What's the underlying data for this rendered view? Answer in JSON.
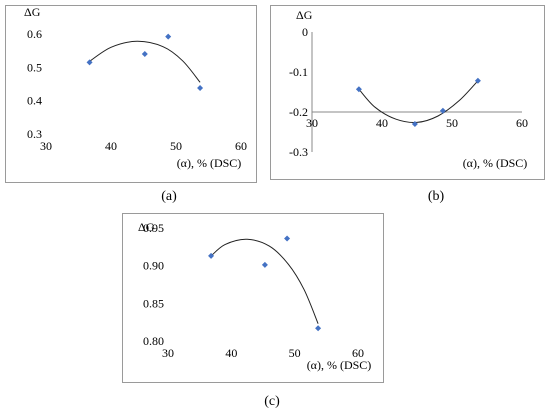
{
  "chart_data": [
    {
      "type": "scatter",
      "ylabel": "ΔG",
      "xlabel": "(α), % (DSC)",
      "xlim": [
        30,
        60
      ],
      "ylim": [
        0.3,
        0.6
      ],
      "xticks": [
        "30",
        "40",
        "50",
        "60"
      ],
      "yticks": [
        "0.3",
        "0.4",
        "0.5",
        "0.6"
      ],
      "points": [
        {
          "x": 36.7,
          "y": 0.515
        },
        {
          "x": 45.2,
          "y": 0.54
        },
        {
          "x": 48.8,
          "y": 0.592
        },
        {
          "x": 53.7,
          "y": 0.438
        }
      ],
      "trendline": {
        "type": "polynomial",
        "order": 2,
        "curve": [
          [
            36.7,
            0.518
          ],
          [
            40.0,
            0.56
          ],
          [
            44.0,
            0.578
          ],
          [
            48.0,
            0.562
          ],
          [
            51.0,
            0.52
          ],
          [
            53.7,
            0.455
          ]
        ]
      },
      "marker_color": "#4472c4"
    },
    {
      "type": "scatter",
      "ylabel": "ΔG",
      "xlabel": "(α), % (DSC)",
      "xlim": [
        30,
        60
      ],
      "ylim": [
        -0.3,
        0
      ],
      "x_axis_crosses_at": -0.2,
      "xticks": [
        "30",
        "40",
        "50",
        "60"
      ],
      "yticks": [
        "0",
        "-0.1",
        "-0.2",
        "-0.3"
      ],
      "points": [
        {
          "x": 36.7,
          "y": -0.143
        },
        {
          "x": 44.7,
          "y": -0.23
        },
        {
          "x": 48.7,
          "y": -0.197
        },
        {
          "x": 53.7,
          "y": -0.122
        }
      ],
      "trendline": {
        "type": "polynomial",
        "order": 2,
        "curve": [
          [
            36.7,
            -0.143
          ],
          [
            39.0,
            -0.188
          ],
          [
            42.0,
            -0.218
          ],
          [
            45.0,
            -0.226
          ],
          [
            48.0,
            -0.21
          ],
          [
            51.0,
            -0.172
          ],
          [
            53.7,
            -0.122
          ]
        ]
      },
      "marker_color": "#4472c4"
    },
    {
      "type": "scatter",
      "ylabel": "ΔG",
      "xlabel": "(α), % (DSC)",
      "xlim": [
        30,
        60
      ],
      "ylim": [
        0.8,
        0.95
      ],
      "xticks": [
        "30",
        "40",
        "50",
        "60"
      ],
      "yticks": [
        "0.80",
        "0.85",
        "0.90",
        "0.95"
      ],
      "points": [
        {
          "x": 36.8,
          "y": 0.913
        },
        {
          "x": 45.3,
          "y": 0.901
        },
        {
          "x": 48.8,
          "y": 0.936
        },
        {
          "x": 53.7,
          "y": 0.817
        }
      ],
      "trendline": {
        "type": "polynomial",
        "order": 2,
        "curve": [
          [
            36.7,
            0.912
          ],
          [
            39.0,
            0.928
          ],
          [
            42.5,
            0.935
          ],
          [
            46.0,
            0.926
          ],
          [
            49.0,
            0.902
          ],
          [
            51.5,
            0.868
          ],
          [
            53.7,
            0.823
          ]
        ]
      },
      "marker_color": "#4472c4"
    }
  ],
  "captions": [
    "(a)",
    "(b)",
    "(c)"
  ]
}
